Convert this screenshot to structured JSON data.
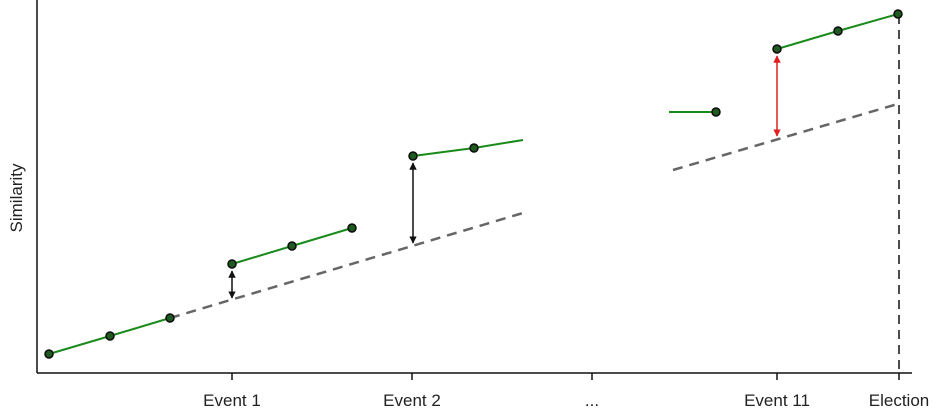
{
  "chart_data": {
    "type": "line",
    "title": "",
    "xlabel": "",
    "ylabel": "Similarity",
    "x_ticks": [
      "Event 1",
      "Event 2",
      "...",
      "Event 11",
      "Election"
    ],
    "colors": {
      "segment": "#1a8a1a",
      "marker_fill": "#1f5a1f",
      "marker_edge": "#0b0b0b",
      "trend": "#666666",
      "gap_arrow": "#111111",
      "highlight_arrow": "#e02020"
    }
  }
}
